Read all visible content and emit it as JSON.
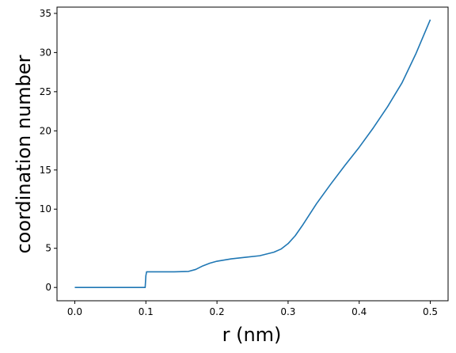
{
  "chart_data": {
    "type": "line",
    "title": "",
    "xlabel": "r (nm)",
    "ylabel": "coordination number",
    "xlim": [
      -0.025,
      0.525
    ],
    "ylim": [
      -1.7,
      35.8
    ],
    "xticks": [
      0.0,
      0.1,
      0.2,
      0.3,
      0.4,
      0.5
    ],
    "xtick_labels": [
      "0.0",
      "0.1",
      "0.2",
      "0.3",
      "0.4",
      "0.5"
    ],
    "yticks": [
      0,
      5,
      10,
      15,
      20,
      25,
      30,
      35
    ],
    "ytick_labels": [
      "0",
      "5",
      "10",
      "15",
      "20",
      "25",
      "30",
      "35"
    ],
    "grid": false,
    "legend": "none",
    "series": [
      {
        "color": "#1f77b4",
        "x": [
          0.0,
          0.05,
          0.099,
          0.1,
          0.101,
          0.12,
          0.14,
          0.16,
          0.17,
          0.18,
          0.19,
          0.2,
          0.22,
          0.24,
          0.26,
          0.28,
          0.29,
          0.3,
          0.31,
          0.32,
          0.33,
          0.34,
          0.36,
          0.38,
          0.4,
          0.42,
          0.44,
          0.46,
          0.48,
          0.5
        ],
        "y": [
          0.0,
          0.0,
          0.0,
          1.5,
          2.0,
          2.0,
          2.0,
          2.05,
          2.3,
          2.75,
          3.1,
          3.35,
          3.65,
          3.85,
          4.05,
          4.5,
          4.9,
          5.6,
          6.6,
          7.9,
          9.3,
          10.7,
          13.2,
          15.6,
          17.9,
          20.4,
          23.1,
          26.1,
          29.9,
          34.2
        ]
      }
    ]
  }
}
